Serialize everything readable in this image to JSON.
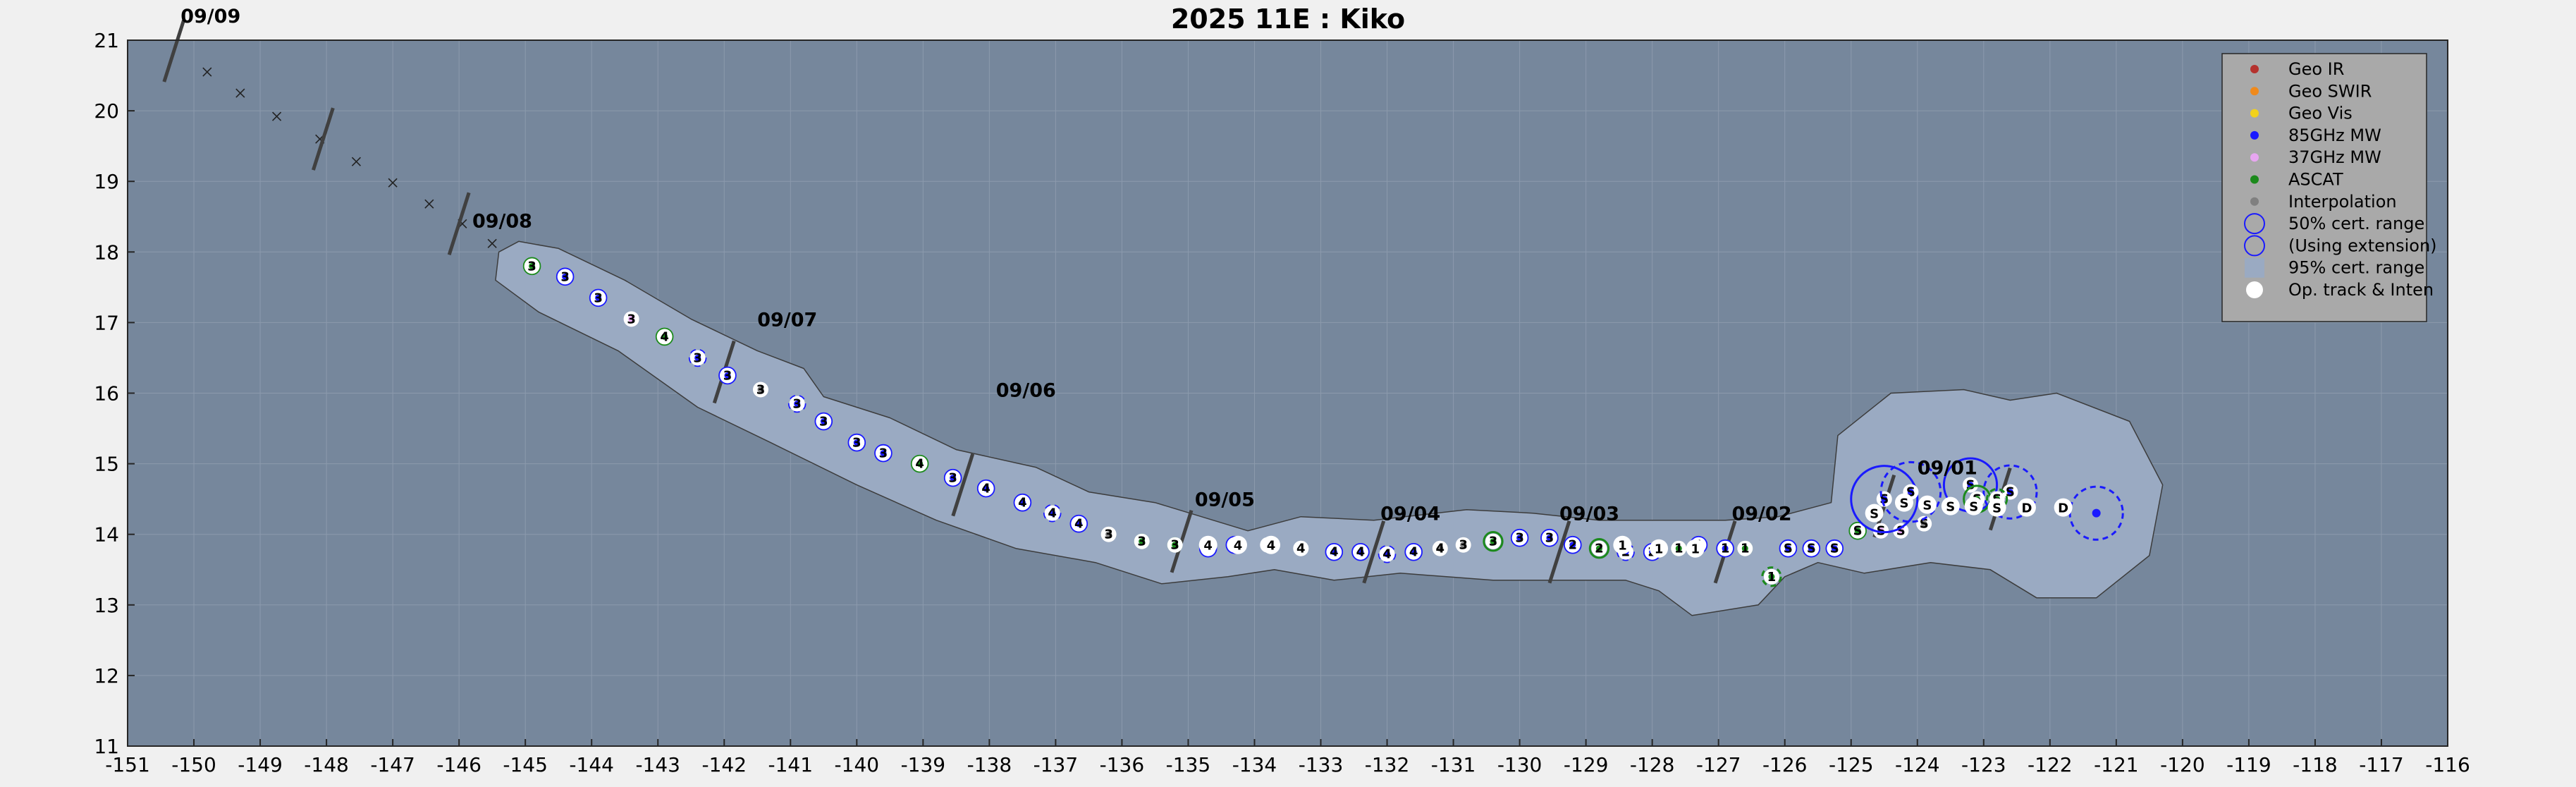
{
  "chart_data": {
    "type": "scatter",
    "title": "2025  11E :  Kiko",
    "xlim": [
      -151,
      -116
    ],
    "ylim": [
      11,
      21
    ],
    "x_ticks": [
      -151,
      -150,
      -149,
      -148,
      -147,
      -146,
      -145,
      -144,
      -143,
      -142,
      -141,
      -140,
      -139,
      -138,
      -137,
      -136,
      -135,
      -134,
      -133,
      -132,
      -131,
      -130,
      -129,
      -128,
      -127,
      -126,
      -125,
      -124,
      -123,
      -122,
      -121,
      -120,
      -119,
      -118,
      -117,
      -116
    ],
    "y_ticks": [
      11,
      12,
      13,
      14,
      15,
      16,
      17,
      18,
      19,
      20,
      21
    ],
    "grid": true,
    "legend_position": "top-right",
    "legend": [
      {
        "label": "Geo IR",
        "color": "#b5322e",
        "symbol": "dot"
      },
      {
        "label": "Geo SWIR",
        "color": "#f08a1c",
        "symbol": "dot"
      },
      {
        "label": "Geo Vis",
        "color": "#f2d21c",
        "symbol": "dot"
      },
      {
        "label": "85GHz MW",
        "color": "#1a1aff",
        "symbol": "dot"
      },
      {
        "label": "37GHz MW",
        "color": "#e7a6f0",
        "symbol": "dot"
      },
      {
        "label": "ASCAT",
        "color": "#1c8a1c",
        "symbol": "dot"
      },
      {
        "label": "Interpolation",
        "color": "#808080",
        "symbol": "dot"
      },
      {
        "label": "50% cert. range",
        "color": "#1a1aff",
        "symbol": "circle"
      },
      {
        "label": "(Using extension)",
        "color": "#1a1aff",
        "symbol": "circle"
      },
      {
        "label": "95% cert. range",
        "color": "#9aaac2",
        "symbol": "square"
      },
      {
        "label": "Op. track & Inten",
        "color": "#ffffff",
        "symbol": "whitedot"
      }
    ],
    "date_labels": [
      {
        "text": "09/09",
        "x": -150.2,
        "y": 21.25
      },
      {
        "text": "09/08",
        "x": -145.8,
        "y": 18.35
      },
      {
        "text": "09/07",
        "x": -141.5,
        "y": 16.95
      },
      {
        "text": "09/06",
        "x": -137.9,
        "y": 15.95
      },
      {
        "text": "09/05",
        "x": -134.9,
        "y": 14.4
      },
      {
        "text": "09/04",
        "x": -132.1,
        "y": 14.2
      },
      {
        "text": "09/03",
        "x": -129.4,
        "y": 14.2
      },
      {
        "text": "09/02",
        "x": -126.8,
        "y": 14.2
      },
      {
        "text": "09/01",
        "x": -124.0,
        "y": 14.85
      }
    ],
    "forecast_track": [
      {
        "lon": -149.8,
        "lat": 20.55
      },
      {
        "lon": -149.3,
        "lat": 20.25
      },
      {
        "lon": -148.75,
        "lat": 19.92
      },
      {
        "lon": -148.1,
        "lat": 19.6
      },
      {
        "lon": -147.55,
        "lat": 19.28
      },
      {
        "lon": -147.0,
        "lat": 18.98
      },
      {
        "lon": -146.45,
        "lat": 18.68
      },
      {
        "lon": -145.95,
        "lat": 18.4
      },
      {
        "lon": -145.5,
        "lat": 18.12
      }
    ],
    "date_ticks": [
      {
        "lon": -150.3,
        "lat": 20.85
      },
      {
        "lon": -148.05,
        "lat": 19.6
      },
      {
        "lon": -146.0,
        "lat": 18.4
      },
      {
        "lon": -142.0,
        "lat": 16.3
      },
      {
        "lon": -138.4,
        "lat": 14.7
      },
      {
        "lon": -135.1,
        "lat": 13.9
      },
      {
        "lon": -132.2,
        "lat": 13.75
      },
      {
        "lon": -129.4,
        "lat": 13.75
      },
      {
        "lon": -126.9,
        "lat": 13.75
      },
      {
        "lon": -124.5,
        "lat": 14.4
      },
      {
        "lon": -122.75,
        "lat": 14.5
      }
    ],
    "fixes": [
      {
        "lon": -144.9,
        "lat": 17.8,
        "src": "ascat",
        "lbl": "3",
        "r": 0.12
      },
      {
        "lon": -144.4,
        "lat": 17.65,
        "src": "mw85",
        "lbl": "3",
        "r": 0.12
      },
      {
        "lon": -143.9,
        "lat": 17.35,
        "src": "mw85",
        "lbl": "3",
        "r": 0.12
      },
      {
        "lon": -143.4,
        "lat": 17.05,
        "src": "mw37",
        "lbl": "3",
        "r": 0.1
      },
      {
        "lon": -142.9,
        "lat": 16.8,
        "src": "ascat",
        "lbl": "4",
        "r": 0.12
      },
      {
        "lon": -142.4,
        "lat": 16.5,
        "src": "mw85",
        "lbl": "3",
        "r": 0.12,
        "dashed": true
      },
      {
        "lon": -141.95,
        "lat": 16.25,
        "src": "mw85",
        "lbl": "3",
        "r": 0.12
      },
      {
        "lon": -141.45,
        "lat": 16.05,
        "src": "interp",
        "lbl": "3",
        "r": 0.1
      },
      {
        "lon": -140.9,
        "lat": 15.85,
        "src": "mw85",
        "lbl": "3",
        "r": 0.12,
        "dashed": true
      },
      {
        "lon": -140.5,
        "lat": 15.6,
        "src": "mw85",
        "lbl": "3",
        "r": 0.12
      },
      {
        "lon": -140.0,
        "lat": 15.3,
        "src": "mw85",
        "lbl": "3",
        "r": 0.12
      },
      {
        "lon": -139.6,
        "lat": 15.15,
        "src": "mw85",
        "lbl": "3",
        "r": 0.12
      },
      {
        "lon": -139.05,
        "lat": 15.0,
        "src": "ascat",
        "lbl": "4",
        "r": 0.12
      },
      {
        "lon": -138.55,
        "lat": 14.8,
        "src": "mw85",
        "lbl": "3",
        "r": 0.12
      },
      {
        "lon": -138.05,
        "lat": 14.65,
        "src": "mw85",
        "lbl": "4",
        "r": 0.12
      },
      {
        "lon": -137.5,
        "lat": 14.45,
        "src": "mw85",
        "lbl": "4",
        "r": 0.12
      },
      {
        "lon": -137.05,
        "lat": 14.3,
        "src": "mw85",
        "lbl": "4",
        "r": 0.12,
        "dashed": true
      },
      {
        "lon": -136.65,
        "lat": 14.15,
        "src": "mw85",
        "lbl": "4",
        "r": 0.12
      },
      {
        "lon": -136.2,
        "lat": 14.0,
        "src": "interp",
        "lbl": "3",
        "r": 0.1
      },
      {
        "lon": -135.7,
        "lat": 13.9,
        "src": "ascat",
        "lbl": "3",
        "r": 0.1
      },
      {
        "lon": -135.2,
        "lat": 13.85,
        "src": "ascat",
        "lbl": "3",
        "r": 0.1
      },
      {
        "lon": -134.7,
        "lat": 13.8,
        "src": "mw85",
        "lbl": "4",
        "r": 0.12
      },
      {
        "lon": -134.3,
        "lat": 13.85,
        "src": "mw85",
        "lbl": "4",
        "r": 0.12
      },
      {
        "lon": -133.8,
        "lat": 13.85,
        "src": "op",
        "lbl": "4",
        "r": 0.1
      },
      {
        "lon": -133.3,
        "lat": 13.8,
        "src": "op",
        "lbl": "4",
        "r": 0.1
      },
      {
        "lon": -132.8,
        "lat": 13.75,
        "src": "mw85",
        "lbl": "4",
        "r": 0.12
      },
      {
        "lon": -132.4,
        "lat": 13.75,
        "src": "mw85",
        "lbl": "4",
        "r": 0.12
      },
      {
        "lon": -132.0,
        "lat": 13.72,
        "src": "mw85",
        "lbl": "4",
        "r": 0.12,
        "dashed": true
      },
      {
        "lon": -131.6,
        "lat": 13.75,
        "src": "mw85",
        "lbl": "4",
        "r": 0.12
      },
      {
        "lon": -131.2,
        "lat": 13.8,
        "src": "interp",
        "lbl": "4",
        "r": 0.1
      },
      {
        "lon": -130.85,
        "lat": 13.85,
        "src": "interp",
        "lbl": "3",
        "r": 0.1
      },
      {
        "lon": -130.4,
        "lat": 13.9,
        "src": "ascat",
        "lbl": "3",
        "r": 0.14
      },
      {
        "lon": -130.0,
        "lat": 13.95,
        "src": "mw85",
        "lbl": "3",
        "r": 0.12
      },
      {
        "lon": -129.55,
        "lat": 13.95,
        "src": "mw85",
        "lbl": "3",
        "r": 0.12
      },
      {
        "lon": -129.2,
        "lat": 13.85,
        "src": "mw85",
        "lbl": "2",
        "r": 0.12
      },
      {
        "lon": -128.8,
        "lat": 13.8,
        "src": "ascat",
        "lbl": "2",
        "r": 0.14
      },
      {
        "lon": -128.4,
        "lat": 13.75,
        "src": "mw85",
        "lbl": "2",
        "r": 0.12,
        "dashed": true
      },
      {
        "lon": -128.0,
        "lat": 13.75,
        "src": "mw85",
        "lbl": "2",
        "r": 0.12
      },
      {
        "lon": -127.6,
        "lat": 13.8,
        "src": "ascat",
        "lbl": "1",
        "r": 0.1
      },
      {
        "lon": -127.3,
        "lat": 13.85,
        "src": "mw85",
        "lbl": "1",
        "r": 0.12
      },
      {
        "lon": -126.9,
        "lat": 13.8,
        "src": "mw85",
        "lbl": "1",
        "r": 0.12
      },
      {
        "lon": -126.6,
        "lat": 13.8,
        "src": "ascat",
        "lbl": "1",
        "r": 0.1
      },
      {
        "lon": -126.2,
        "lat": 13.4,
        "src": "ascat",
        "lbl": "1",
        "r": 0.14,
        "dashed": true
      },
      {
        "lon": -125.95,
        "lat": 13.8,
        "src": "mw85",
        "lbl": "S",
        "r": 0.12
      },
      {
        "lon": -125.6,
        "lat": 13.8,
        "src": "mw85",
        "lbl": "S",
        "r": 0.12
      },
      {
        "lon": -125.25,
        "lat": 13.8,
        "src": "mw85",
        "lbl": "S",
        "r": 0.12
      },
      {
        "lon": -124.9,
        "lat": 14.05,
        "src": "ascat",
        "lbl": "S",
        "r": 0.12
      },
      {
        "lon": -124.55,
        "lat": 14.05,
        "src": "mw37",
        "lbl": "S",
        "r": 0.1
      },
      {
        "lon": -124.25,
        "lat": 14.05,
        "src": "mw37",
        "lbl": "S",
        "r": 0.1
      },
      {
        "lon": -123.9,
        "lat": 14.15,
        "src": "interp",
        "lbl": "S",
        "r": 0.1
      },
      {
        "lon": -124.5,
        "lat": 14.5,
        "src": "mw85",
        "lbl": "S",
        "r": 0.5
      },
      {
        "lon": -124.1,
        "lat": 14.6,
        "src": "mw85",
        "lbl": "S",
        "r": 0.45,
        "dashed": true
      },
      {
        "lon": -123.2,
        "lat": 14.7,
        "src": "mw85",
        "lbl": "S",
        "r": 0.4
      },
      {
        "lon": -122.6,
        "lat": 14.6,
        "src": "mw85",
        "lbl": "S",
        "r": 0.4,
        "dashed": true
      },
      {
        "lon": -123.1,
        "lat": 14.5,
        "src": "ascat",
        "lbl": "S",
        "r": 0.2
      },
      {
        "lon": -122.8,
        "lat": 14.5,
        "src": "ascat",
        "lbl": "S",
        "r": 0.15,
        "dashed": true
      },
      {
        "lon": -121.3,
        "lat": 14.3,
        "src": "mw85",
        "lbl": "",
        "r": 0.4,
        "dashed": true
      }
    ],
    "op_track": [
      {
        "lon": -124.65,
        "lat": 14.3,
        "lbl": "S"
      },
      {
        "lon": -124.2,
        "lat": 14.45,
        "lbl": "S"
      },
      {
        "lon": -123.85,
        "lat": 14.42,
        "lbl": "S"
      },
      {
        "lon": -123.5,
        "lat": 14.4,
        "lbl": "S"
      },
      {
        "lon": -123.15,
        "lat": 14.4,
        "lbl": "S"
      },
      {
        "lon": -122.8,
        "lat": 14.38,
        "lbl": "S"
      },
      {
        "lon": -122.35,
        "lat": 14.38,
        "lbl": "D"
      },
      {
        "lon": -121.8,
        "lat": 14.38,
        "lbl": "D"
      },
      {
        "lon": -134.7,
        "lat": 13.85,
        "lbl": "4"
      },
      {
        "lon": -134.25,
        "lat": 13.85,
        "lbl": "4"
      },
      {
        "lon": -133.75,
        "lat": 13.85,
        "lbl": "4"
      },
      {
        "lon": -128.45,
        "lat": 13.85,
        "lbl": "1"
      },
      {
        "lon": -127.9,
        "lat": 13.8,
        "lbl": "1"
      },
      {
        "lon": -127.35,
        "lat": 13.8,
        "lbl": "1"
      }
    ],
    "uncertainty_envelope": [
      [
        -145.1,
        18.15
      ],
      [
        -144.5,
        18.05
      ],
      [
        -143.5,
        17.6
      ],
      [
        -142.5,
        17.05
      ],
      [
        -141.5,
        16.6
      ],
      [
        -140.8,
        16.35
      ],
      [
        -140.5,
        15.95
      ],
      [
        -139.5,
        15.65
      ],
      [
        -138.5,
        15.2
      ],
      [
        -137.3,
        14.95
      ],
      [
        -136.5,
        14.6
      ],
      [
        -135.5,
        14.45
      ],
      [
        -134.8,
        14.25
      ],
      [
        -134.1,
        14.05
      ],
      [
        -133.3,
        14.25
      ],
      [
        -132.2,
        14.2
      ],
      [
        -130.8,
        14.35
      ],
      [
        -129.8,
        14.3
      ],
      [
        -128.8,
        14.2
      ],
      [
        -127.8,
        14.2
      ],
      [
        -126.9,
        14.2
      ],
      [
        -126.1,
        14.25
      ],
      [
        -125.3,
        14.45
      ],
      [
        -125.2,
        15.4
      ],
      [
        -124.4,
        16.0
      ],
      [
        -123.3,
        16.05
      ],
      [
        -122.6,
        15.9
      ],
      [
        -121.9,
        16.0
      ],
      [
        -120.8,
        15.6
      ],
      [
        -120.3,
        14.7
      ],
      [
        -120.5,
        13.7
      ],
      [
        -121.3,
        13.1
      ],
      [
        -122.2,
        13.1
      ],
      [
        -122.9,
        13.5
      ],
      [
        -123.8,
        13.6
      ],
      [
        -124.8,
        13.45
      ],
      [
        -125.5,
        13.6
      ],
      [
        -126.0,
        13.4
      ],
      [
        -126.4,
        13.0
      ],
      [
        -127.4,
        12.85
      ],
      [
        -127.9,
        13.2
      ],
      [
        -128.4,
        13.35
      ],
      [
        -129.3,
        13.35
      ],
      [
        -130.4,
        13.35
      ],
      [
        -131.8,
        13.45
      ],
      [
        -132.8,
        13.35
      ],
      [
        -133.7,
        13.5
      ],
      [
        -134.4,
        13.4
      ],
      [
        -135.4,
        13.3
      ],
      [
        -136.4,
        13.6
      ],
      [
        -137.6,
        13.8
      ],
      [
        -138.8,
        14.2
      ],
      [
        -140.0,
        14.7
      ],
      [
        -141.3,
        15.3
      ],
      [
        -142.4,
        15.8
      ],
      [
        -143.6,
        16.6
      ],
      [
        -144.8,
        17.15
      ],
      [
        -145.45,
        17.6
      ],
      [
        -145.4,
        18.0
      ]
    ]
  }
}
